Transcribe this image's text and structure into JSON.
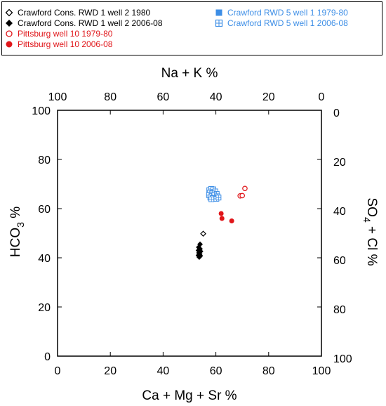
{
  "legend": [
    {
      "label": "Crawford Cons. RWD 1 well 2 1980",
      "color": "#000000",
      "marker": "diamond-open"
    },
    {
      "label": "Crawford Cons. RWD 1 well 2 2006-08",
      "color": "#000000",
      "marker": "diamond-filled"
    },
    {
      "label": "Pittsburg well 10 1979-80",
      "color": "#e0161a",
      "marker": "circle-open"
    },
    {
      "label": "Pittsburg well 10 2006-08",
      "color": "#e0161a",
      "marker": "circle-filled"
    },
    {
      "label": "Crawford RWD 5 well 1 1979-80",
      "color": "#3d8ee6",
      "marker": "square-filled"
    },
    {
      "label": "Crawford RWD 5 well 1 2006-08",
      "color": "#3d8ee6",
      "marker": "square-open-cross"
    }
  ],
  "chart_data": {
    "type": "scatter",
    "xlabel": "Ca + Mg + Sr %",
    "top_label": "Na + K %",
    "ylabel_main": "HCO",
    "ylabel_sub": "3",
    "ylabel_tail": " %",
    "right_label_main": "SO",
    "right_label_sub": "4",
    "right_label_tail": " + Cl %",
    "xlim": [
      0,
      100
    ],
    "ylim": [
      0,
      100
    ],
    "x_ticks": [
      "0",
      "20",
      "40",
      "60",
      "80",
      "100"
    ],
    "y_ticks": [
      "0",
      "20",
      "40",
      "60",
      "80",
      "100"
    ],
    "top_ticks": [
      "100",
      "80",
      "60",
      "40",
      "20",
      "0"
    ],
    "right_ticks": [
      "100",
      "80",
      "60",
      "40",
      "20",
      "0"
    ],
    "grid": false,
    "series": [
      {
        "name": "Crawford Cons. RWD 1 well 2 1980",
        "color": "#000000",
        "marker": "diamond-open",
        "points": [
          [
            55.2,
            49.8
          ]
        ]
      },
      {
        "name": "Crawford Cons. RWD 1 well 2 2006-08",
        "color": "#000000",
        "marker": "diamond-filled",
        "points": [
          [
            54.0,
            45.5
          ],
          [
            53.5,
            44.3
          ],
          [
            54.0,
            43.6
          ],
          [
            53.4,
            43.0
          ],
          [
            54.2,
            42.6
          ],
          [
            53.6,
            42.0
          ],
          [
            53.9,
            41.5
          ],
          [
            53.4,
            41.0
          ],
          [
            54.1,
            40.8
          ],
          [
            53.7,
            40.3
          ]
        ]
      },
      {
        "name": "Pittsburg well 10 1979-80",
        "color": "#e0161a",
        "marker": "circle-open",
        "points": [
          [
            71.0,
            68.2
          ],
          [
            69.2,
            65.2
          ],
          [
            70.0,
            65.3
          ]
        ]
      },
      {
        "name": "Pittsburg well 10 2006-08",
        "color": "#e0161a",
        "marker": "circle-filled",
        "points": [
          [
            62.0,
            58.0
          ],
          [
            62.3,
            56.0
          ],
          [
            66.0,
            55.0
          ]
        ]
      },
      {
        "name": "Crawford RWD 5 well 1 1979-80",
        "color": "#3d8ee6",
        "marker": "square-filled",
        "points": [
          [
            59.0,
            68.0
          ],
          [
            58.5,
            67.3
          ],
          [
            59.4,
            66.8
          ]
        ]
      },
      {
        "name": "Crawford RWD 5 well 1 2006-08",
        "color": "#3d8ee6",
        "marker": "square-open-cross",
        "points": [
          [
            57.5,
            67.5
          ],
          [
            58.2,
            68.0
          ],
          [
            59.0,
            67.8
          ],
          [
            59.8,
            67.0
          ],
          [
            57.8,
            66.5
          ],
          [
            58.6,
            66.2
          ],
          [
            60.3,
            66.0
          ],
          [
            57.4,
            65.5
          ],
          [
            58.4,
            65.2
          ],
          [
            59.4,
            65.4
          ],
          [
            60.6,
            65.0
          ],
          [
            57.9,
            64.5
          ],
          [
            59.0,
            64.3
          ],
          [
            60.2,
            64.0
          ],
          [
            61.0,
            64.5
          ],
          [
            58.3,
            63.8
          ]
        ]
      }
    ]
  }
}
